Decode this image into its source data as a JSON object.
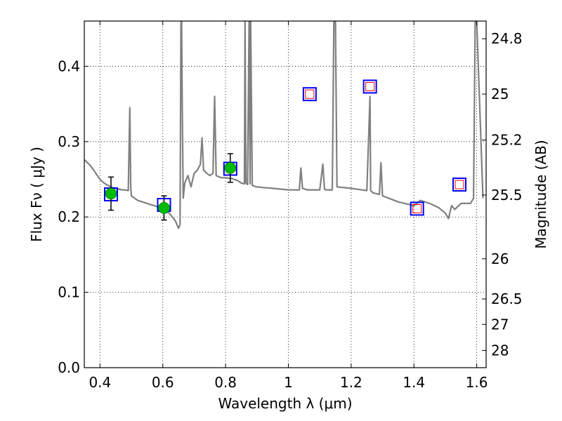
{
  "chart_data": {
    "type": "scatter",
    "xlabel": "Wavelength  λ (μm)",
    "ylabel": "Flux  Fν  ( μJy )",
    "ylabel_right": "Magnitude (AB)",
    "xlim": [
      0.35,
      1.63
    ],
    "ylim": [
      0.0,
      0.46
    ],
    "grid": true,
    "x_ticks": [
      0.4,
      0.6,
      0.8,
      1.0,
      1.2,
      1.4,
      1.6
    ],
    "x_tick_labels": [
      "0.4",
      "0.6",
      "0.8",
      "1",
      "1.2",
      "1.4",
      "1.6"
    ],
    "y_ticks": [
      0.0,
      0.1,
      0.2,
      0.3,
      0.4
    ],
    "y_tick_labels": [
      "0.0",
      "0.1",
      "0.2",
      "0.3",
      "0.4"
    ],
    "right_axis_ticks": [
      {
        "label": "24.8",
        "flux": 0.4365
      },
      {
        "label": "25",
        "flux": 0.3631
      },
      {
        "label": "25.2",
        "flux": 0.302
      },
      {
        "label": "25.5",
        "flux": 0.2291
      },
      {
        "label": "26",
        "flux": 0.1445
      },
      {
        "label": "26.5",
        "flux": 0.0912
      },
      {
        "label": "27",
        "flux": 0.0575
      },
      {
        "label": "28",
        "flux": 0.0229
      }
    ],
    "colors": {
      "model_line": "#808080",
      "observed_marker": "#00bb00",
      "model_box": "#0000ff",
      "inner_box": "#ff0000",
      "error_bar": "#000000"
    },
    "series": [
      {
        "kind": "model_spectrum",
        "x": [
          0.35,
          0.36,
          0.37,
          0.38,
          0.39,
          0.4,
          0.41,
          0.42,
          0.43,
          0.44,
          0.45,
          0.46,
          0.47,
          0.48,
          0.49,
          0.495,
          0.498,
          0.5,
          0.52,
          0.55,
          0.58,
          0.6,
          0.62,
          0.64,
          0.65,
          0.655,
          0.658,
          0.66,
          0.662,
          0.665,
          0.67,
          0.68,
          0.69,
          0.7,
          0.71,
          0.72,
          0.725,
          0.73,
          0.74,
          0.75,
          0.76,
          0.765,
          0.77,
          0.78,
          0.79,
          0.8,
          0.82,
          0.84,
          0.85,
          0.86,
          0.862,
          0.865,
          0.87,
          0.875,
          0.878,
          0.88,
          0.885,
          0.89,
          0.9,
          0.92,
          0.95,
          1.0,
          1.02,
          1.035,
          1.04,
          1.045,
          1.06,
          1.08,
          1.1,
          1.11,
          1.115,
          1.12,
          1.14,
          1.145,
          1.15,
          1.155,
          1.2,
          1.25,
          1.26,
          1.262,
          1.27,
          1.29,
          1.295,
          1.3,
          1.35,
          1.4,
          1.42,
          1.45,
          1.48,
          1.5,
          1.51,
          1.52,
          1.53,
          1.55,
          1.58,
          1.59,
          1.595,
          1.6,
          1.62
        ],
        "y": [
          0.276,
          0.272,
          0.268,
          0.262,
          0.256,
          0.25,
          0.246,
          0.243,
          0.241,
          0.239,
          0.238,
          0.237,
          0.236,
          0.236,
          0.235,
          0.345,
          0.24,
          0.228,
          0.222,
          0.218,
          0.214,
          0.21,
          0.205,
          0.195,
          0.185,
          0.19,
          0.46,
          0.46,
          0.35,
          0.225,
          0.245,
          0.255,
          0.24,
          0.258,
          0.262,
          0.27,
          0.305,
          0.262,
          0.258,
          0.255,
          0.258,
          0.36,
          0.255,
          0.253,
          0.252,
          0.252,
          0.251,
          0.248,
          0.245,
          0.244,
          0.46,
          0.245,
          0.243,
          0.46,
          0.244,
          0.46,
          0.242,
          0.241,
          0.24,
          0.239,
          0.238,
          0.236,
          0.236,
          0.236,
          0.265,
          0.238,
          0.236,
          0.236,
          0.236,
          0.27,
          0.237,
          0.236,
          0.236,
          0.46,
          0.46,
          0.24,
          0.238,
          0.235,
          0.36,
          0.235,
          0.232,
          0.23,
          0.272,
          0.228,
          0.22,
          0.215,
          0.222,
          0.218,
          0.212,
          0.205,
          0.198,
          0.215,
          0.21,
          0.218,
          0.218,
          0.225,
          0.46,
          0.46,
          0.225
        ]
      },
      {
        "kind": "observed",
        "x": [
          0.435,
          0.604,
          0.815
        ],
        "y": [
          0.231,
          0.212,
          0.265
        ],
        "yerr": [
          0.022,
          0.016,
          0.019
        ]
      },
      {
        "kind": "model_photometry",
        "x": [
          0.435,
          0.604,
          0.815,
          1.068,
          1.26,
          1.41,
          1.545
        ],
        "y": [
          0.23,
          0.216,
          0.264,
          0.363,
          0.373,
          0.211,
          0.243
        ]
      },
      {
        "kind": "inner_box",
        "x": [
          1.068,
          1.26,
          1.41,
          1.545
        ],
        "y": [
          0.363,
          0.373,
          0.211,
          0.243
        ]
      }
    ]
  }
}
